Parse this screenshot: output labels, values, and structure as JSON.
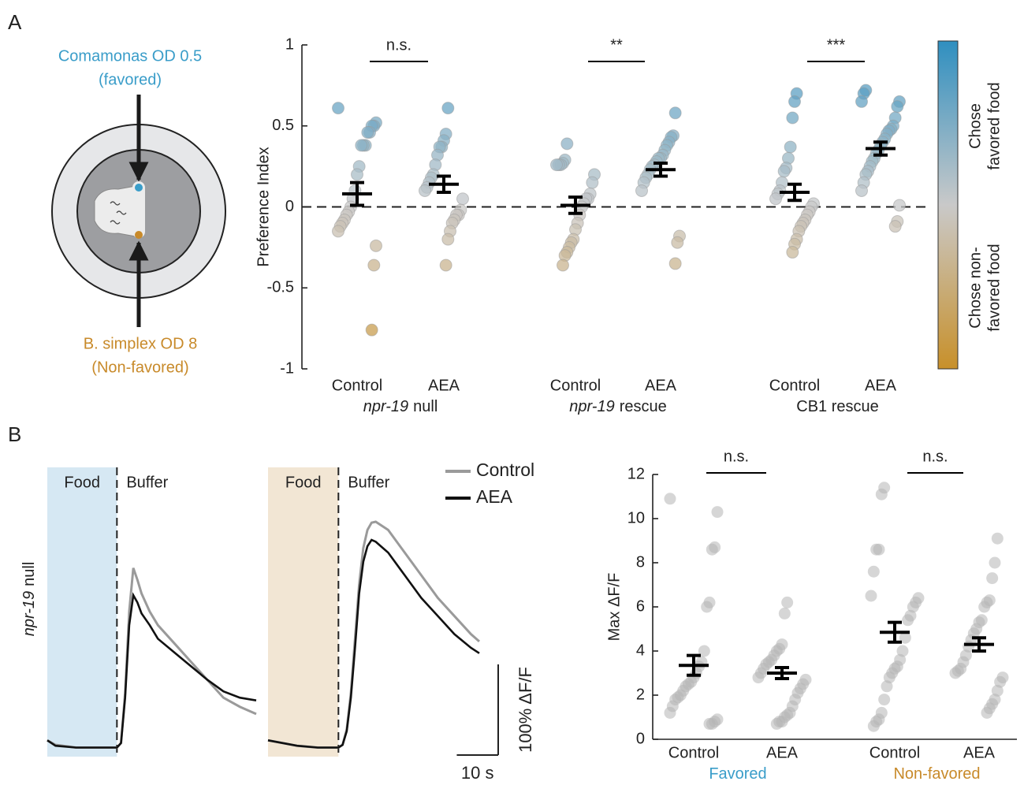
{
  "panel_labels": [
    "A",
    "B"
  ],
  "diagram": {
    "favored_label": [
      "Comamonas OD 0.5",
      "(favored)"
    ],
    "favored_color": "#3a9dc9",
    "nonfavored_label": [
      "B. simplex OD 8",
      "(Non-favored)"
    ],
    "nonfavored_color": "#c88a2a"
  },
  "chart_data": [
    {
      "type": "strip",
      "y_label": "Preference Index",
      "ylim": [
        -1,
        1
      ],
      "yticks": [
        -1,
        -0.5,
        0,
        0.5,
        1
      ],
      "reference_line": 0,
      "colorbar": {
        "top_label": [
          "Chose",
          "favored food"
        ],
        "bottom_label": [
          "Chose non-",
          "favored food"
        ],
        "colors": [
          "#c8902a",
          "#c9c9c9",
          "#2f8fc0"
        ]
      },
      "groups": [
        {
          "name_italic": "npr-19",
          "name": "null",
          "significance": "n.s.",
          "conditions": [
            {
              "name": "Control",
              "mean": 0.08,
              "sem": 0.07,
              "values": [
                0.61,
                0.52,
                0.5,
                0.5,
                0.46,
                0.46,
                0.38,
                0.38,
                0.38,
                0.25,
                0.2,
                0.1,
                0.05,
                0.0,
                -0.03,
                -0.05,
                -0.08,
                -0.1,
                -0.12,
                -0.15,
                -0.24,
                -0.36,
                -0.76
              ]
            },
            {
              "name": "AEA",
              "mean": 0.14,
              "sem": 0.05,
              "values": [
                0.61,
                0.45,
                0.41,
                0.37,
                0.37,
                0.32,
                0.26,
                0.2,
                0.18,
                0.15,
                0.12,
                0.1,
                0.05,
                -0.02,
                -0.05,
                -0.05,
                -0.08,
                -0.1,
                -0.15,
                -0.2,
                -0.36
              ]
            }
          ]
        },
        {
          "name_italic": "npr-19",
          "name": "rescue",
          "significance": "**",
          "conditions": [
            {
              "name": "Control",
              "mean": 0.01,
              "sem": 0.05,
              "values": [
                0.39,
                0.29,
                0.27,
                0.26,
                0.26,
                0.26,
                0.2,
                0.15,
                0.08,
                0.05,
                0.05,
                0.02,
                0.0,
                -0.05,
                -0.1,
                -0.14,
                -0.2,
                -0.22,
                -0.25,
                -0.28,
                -0.3,
                -0.36
              ]
            },
            {
              "name": "AEA",
              "mean": 0.23,
              "sem": 0.04,
              "values": [
                0.58,
                0.44,
                0.43,
                0.4,
                0.38,
                0.35,
                0.32,
                0.3,
                0.3,
                0.28,
                0.26,
                0.25,
                0.23,
                0.2,
                0.18,
                0.15,
                0.1,
                -0.18,
                -0.22,
                -0.35
              ]
            }
          ]
        },
        {
          "name": "CB1 rescue",
          "significance": "***",
          "conditions": [
            {
              "name": "Control",
              "mean": 0.09,
              "sem": 0.05,
              "values": [
                0.7,
                0.65,
                0.55,
                0.37,
                0.3,
                0.24,
                0.22,
                0.15,
                0.1,
                0.08,
                0.05,
                0.02,
                0.0,
                -0.03,
                -0.05,
                -0.08,
                -0.1,
                -0.12,
                -0.15,
                -0.2,
                -0.23,
                -0.28
              ]
            },
            {
              "name": "AEA",
              "mean": 0.36,
              "sem": 0.04,
              "values": [
                0.72,
                0.7,
                0.65,
                0.65,
                0.62,
                0.55,
                0.5,
                0.48,
                0.47,
                0.45,
                0.42,
                0.4,
                0.38,
                0.35,
                0.33,
                0.3,
                0.28,
                0.25,
                0.22,
                0.2,
                0.15,
                0.1,
                0.01,
                -0.09,
                -0.12
              ]
            }
          ]
        }
      ]
    },
    {
      "type": "line",
      "row_label": {
        "name_italic": "npr-19",
        "name": "null"
      },
      "shade_label": "Food",
      "after_label": "Buffer",
      "shade_end": 0,
      "shade_color": "#d6e8f3",
      "xlim": [
        -17,
        34
      ],
      "ylim": [
        -10,
        309
      ],
      "x": [
        -17,
        -15,
        -10,
        -5,
        0,
        1,
        2,
        3,
        4,
        5,
        6,
        8,
        10,
        14,
        18,
        22,
        26,
        30,
        34
      ],
      "series": [
        {
          "name": "Control",
          "color": "#9a9a9a",
          "values": [
            8,
            3,
            0,
            0,
            0,
            5,
            60,
            150,
            198,
            185,
            170,
            150,
            135,
            115,
            95,
            75,
            55,
            45,
            37
          ]
        },
        {
          "name": "AEA",
          "color": "#111111",
          "values": [
            8,
            2,
            0,
            0,
            0,
            5,
            55,
            135,
            168,
            160,
            148,
            135,
            120,
            105,
            90,
            75,
            62,
            55,
            52
          ]
        }
      ]
    },
    {
      "type": "line",
      "shade_label": "Food",
      "after_label": "Buffer",
      "shade_end": 0,
      "shade_color": "#f2e6d4",
      "xlim": [
        -17,
        34
      ],
      "ylim": [
        -10,
        309
      ],
      "scale_bar": {
        "x": 10,
        "x_label": "10 s",
        "y": 100,
        "y_label": "100% ΔF/F"
      },
      "x": [
        -17,
        -10,
        -5,
        0,
        1,
        2,
        3,
        4,
        5,
        6,
        7,
        8,
        9,
        12,
        16,
        20,
        24,
        28,
        32,
        34
      ],
      "series": [
        {
          "color": "#9a9a9a",
          "values": [
            8,
            2,
            0,
            0,
            3,
            20,
            60,
            120,
            180,
            220,
            240,
            248,
            249,
            240,
            215,
            190,
            165,
            145,
            125,
            117
          ]
        },
        {
          "color": "#111111",
          "values": [
            8,
            2,
            0,
            0,
            3,
            18,
            55,
            110,
            170,
            205,
            222,
            229,
            227,
            215,
            190,
            165,
            145,
            125,
            110,
            104
          ]
        }
      ]
    },
    {
      "type": "strip",
      "y_label": "Max ΔF/F",
      "ylim": [
        0,
        12
      ],
      "yticks": [
        0,
        2,
        4,
        6,
        8,
        10,
        12
      ],
      "point_color": "#b5b5b5",
      "groups": [
        {
          "name": "Favored",
          "color": "#3a9dc9",
          "significance": "n.s.",
          "conditions": [
            {
              "name": "Control",
              "mean": 3.35,
              "sem": 0.45,
              "values": [
                10.9,
                10.3,
                8.7,
                8.6,
                6.2,
                6.0,
                4.0,
                3.5,
                3.3,
                3.0,
                2.8,
                2.6,
                2.5,
                2.4,
                2.2,
                2.0,
                1.9,
                1.8,
                1.5,
                1.2,
                0.9,
                0.8,
                0.7,
                0.7
              ]
            },
            {
              "name": "AEA",
              "mean": 3.0,
              "sem": 0.25,
              "values": [
                6.2,
                5.7,
                4.3,
                4.1,
                4.0,
                3.8,
                3.6,
                3.5,
                3.4,
                3.2,
                3.0,
                2.8,
                2.7,
                2.5,
                2.3,
                2.1,
                1.8,
                1.5,
                1.2,
                1.1,
                1.0,
                0.8,
                0.8,
                0.7
              ]
            }
          ]
        },
        {
          "name": "Non-favored",
          "color": "#c88a2a",
          "significance": "n.s.",
          "conditions": [
            {
              "name": "Control",
              "mean": 4.85,
              "sem": 0.45,
              "values": [
                11.4,
                11.1,
                8.6,
                8.6,
                7.6,
                6.5,
                6.4,
                6.2,
                6.0,
                5.6,
                5.4,
                4.6,
                4.0,
                3.6,
                3.3,
                3.2,
                3.0,
                2.8,
                2.4,
                1.8,
                1.2,
                0.9,
                0.8,
                0.6
              ]
            },
            {
              "name": "AEA",
              "mean": 4.3,
              "sem": 0.3,
              "values": [
                9.1,
                8.0,
                7.3,
                6.3,
                6.2,
                6.0,
                5.4,
                5.3,
                5.0,
                4.8,
                4.5,
                4.2,
                3.8,
                3.5,
                3.2,
                3.1,
                3.0,
                2.8,
                2.6,
                2.2,
                1.8,
                1.6,
                1.4,
                1.2
              ]
            }
          ]
        }
      ]
    }
  ]
}
